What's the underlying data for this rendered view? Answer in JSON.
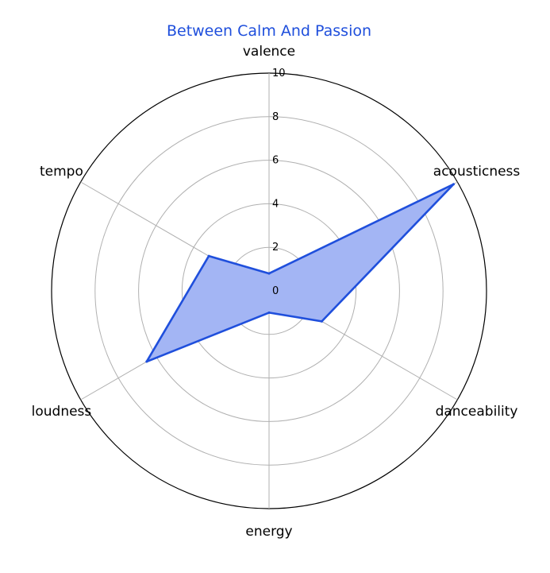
{
  "chart_data": {
    "type": "radar",
    "title": "Between Calm And Passion",
    "axes": [
      "valence",
      "acousticness",
      "danceability",
      "energy",
      "loudness",
      "tempo"
    ],
    "series": [
      {
        "values": [
          0.8,
          9.8,
          2.8,
          1.0,
          6.5,
          3.2
        ]
      }
    ],
    "rlim": [
      0,
      10
    ],
    "r_ticks": [
      "0",
      "2",
      "4",
      "6",
      "8",
      "10"
    ],
    "grid": true,
    "colors": {
      "title": "#1f4fdc",
      "line": "#1f4fdc",
      "fill": "#a3b5f4",
      "grid": "#b0b0b0",
      "frame": "#000000"
    }
  }
}
